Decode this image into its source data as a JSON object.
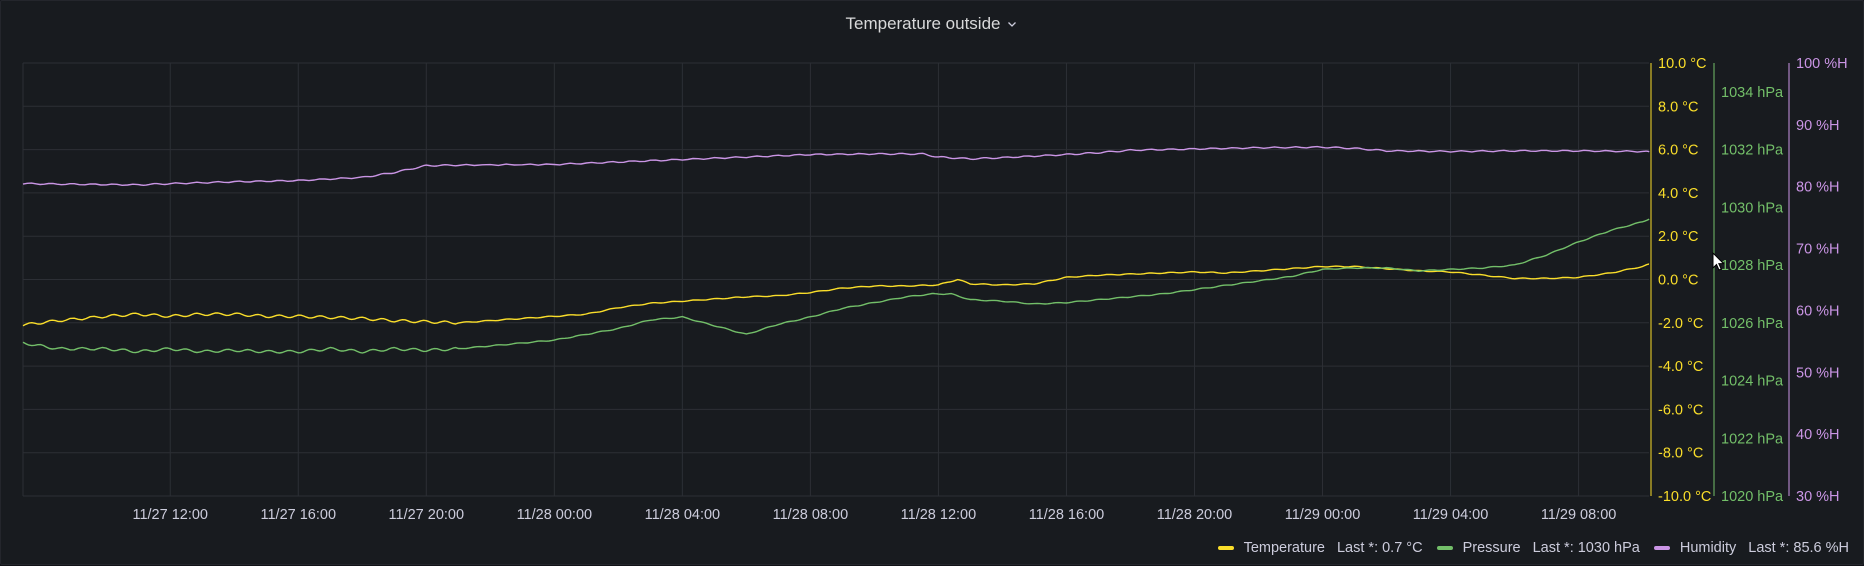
{
  "panel": {
    "title": "Temperature outside"
  },
  "colors": {
    "background": "#181b1f",
    "grid": "#2c2f35",
    "temperature": "#fade2a",
    "pressure": "#73bf69",
    "humidity": "#ca95e5",
    "tick_text": "#ccccdc"
  },
  "legend": [
    {
      "name": "Temperature",
      "last": "Last *: 0.7 °C",
      "color": "#fade2a"
    },
    {
      "name": "Pressure",
      "last": "Last *: 1030 hPa",
      "color": "#73bf69"
    },
    {
      "name": "Humidity",
      "last": "Last *: 85.6 %H",
      "color": "#ca95e5"
    }
  ],
  "chart_data": {
    "type": "line",
    "grid": true,
    "legend_position": "bottom-right",
    "x_range_hours": [
      -4.6,
      46.2
    ],
    "x_ticks": [
      {
        "h": 0,
        "label": "11/27 12:00"
      },
      {
        "h": 4,
        "label": "11/27 16:00"
      },
      {
        "h": 8,
        "label": "11/27 20:00"
      },
      {
        "h": 12,
        "label": "11/28 00:00"
      },
      {
        "h": 16,
        "label": "11/28 04:00"
      },
      {
        "h": 20,
        "label": "11/28 08:00"
      },
      {
        "h": 24,
        "label": "11/28 12:00"
      },
      {
        "h": 28,
        "label": "11/28 16:00"
      },
      {
        "h": 32,
        "label": "11/28 20:00"
      },
      {
        "h": 36,
        "label": "11/29 00:00"
      },
      {
        "h": 40,
        "label": "11/29 04:00"
      },
      {
        "h": 44,
        "label": "11/29 08:00"
      }
    ],
    "axes": [
      {
        "id": "temp",
        "unit": "°C",
        "color": "#fade2a",
        "range": [
          -10,
          10
        ],
        "ticks": [
          {
            "v": 10,
            "label": "10.0 °C"
          },
          {
            "v": 8,
            "label": "8.0 °C"
          },
          {
            "v": 6,
            "label": "6.0 °C"
          },
          {
            "v": 4,
            "label": "4.0 °C"
          },
          {
            "v": 2,
            "label": "2.0 °C"
          },
          {
            "v": 0,
            "label": "0.0 °C"
          },
          {
            "v": -2,
            "label": "-2.0 °C"
          },
          {
            "v": -4,
            "label": "-4.0 °C"
          },
          {
            "v": -6,
            "label": "-6.0 °C"
          },
          {
            "v": -8,
            "label": "-8.0 °C"
          },
          {
            "v": -10,
            "label": "-10.0 °C"
          }
        ]
      },
      {
        "id": "pressure",
        "unit": "hPa",
        "color": "#73bf69",
        "range": [
          1020,
          1035
        ],
        "ticks": [
          {
            "v": 1034,
            "label": "1034 hPa"
          },
          {
            "v": 1032,
            "label": "1032 hPa"
          },
          {
            "v": 1030,
            "label": "1030 hPa"
          },
          {
            "v": 1028,
            "label": "1028 hPa"
          },
          {
            "v": 1026,
            "label": "1026 hPa"
          },
          {
            "v": 1024,
            "label": "1024 hPa"
          },
          {
            "v": 1022,
            "label": "1022 hPa"
          },
          {
            "v": 1020,
            "label": "1020 hPa"
          }
        ]
      },
      {
        "id": "humidity",
        "unit": "%H",
        "color": "#ca95e5",
        "range": [
          30,
          100
        ],
        "ticks": [
          {
            "v": 100,
            "label": "100 %H"
          },
          {
            "v": 90,
            "label": "90 %H"
          },
          {
            "v": 80,
            "label": "80 %H"
          },
          {
            "v": 70,
            "label": "70 %H"
          },
          {
            "v": 60,
            "label": "60 %H"
          },
          {
            "v": 50,
            "label": "50 %H"
          },
          {
            "v": 40,
            "label": "40 %H"
          },
          {
            "v": 30,
            "label": "30 %H"
          }
        ]
      }
    ],
    "series": [
      {
        "name": "Temperature",
        "axis": "temp",
        "color": "#fade2a",
        "points": [
          [
            -4.6,
            -2.1
          ],
          [
            -3.5,
            -1.9
          ],
          [
            -2,
            -1.7
          ],
          [
            -1,
            -1.6
          ],
          [
            0,
            -1.7
          ],
          [
            1,
            -1.6
          ],
          [
            2,
            -1.6
          ],
          [
            3,
            -1.7
          ],
          [
            4,
            -1.7
          ],
          [
            5,
            -1.75
          ],
          [
            6,
            -1.8
          ],
          [
            7,
            -1.9
          ],
          [
            8,
            -1.95
          ],
          [
            9,
            -2.0
          ],
          [
            10,
            -1.9
          ],
          [
            11,
            -1.8
          ],
          [
            12,
            -1.7
          ],
          [
            13,
            -1.6
          ],
          [
            14,
            -1.3
          ],
          [
            15,
            -1.1
          ],
          [
            16,
            -1.0
          ],
          [
            17,
            -0.9
          ],
          [
            18,
            -0.8
          ],
          [
            19,
            -0.75
          ],
          [
            20,
            -0.6
          ],
          [
            21,
            -0.4
          ],
          [
            22,
            -0.3
          ],
          [
            23,
            -0.3
          ],
          [
            24,
            -0.25
          ],
          [
            24.6,
            0.0
          ],
          [
            25,
            -0.2
          ],
          [
            26,
            -0.25
          ],
          [
            27,
            -0.2
          ],
          [
            28,
            0.1
          ],
          [
            29,
            0.2
          ],
          [
            30,
            0.25
          ],
          [
            31,
            0.3
          ],
          [
            32,
            0.35
          ],
          [
            33,
            0.3
          ],
          [
            34,
            0.4
          ],
          [
            35,
            0.5
          ],
          [
            36,
            0.6
          ],
          [
            37,
            0.6
          ],
          [
            38,
            0.5
          ],
          [
            39,
            0.4
          ],
          [
            40,
            0.35
          ],
          [
            41,
            0.2
          ],
          [
            42,
            0.05
          ],
          [
            43,
            0.05
          ],
          [
            44,
            0.1
          ],
          [
            45,
            0.3
          ],
          [
            46,
            0.6
          ],
          [
            46.2,
            0.7
          ]
        ]
      },
      {
        "name": "Pressure",
        "axis": "pressure",
        "color": "#73bf69",
        "points": [
          [
            -4.6,
            1025.3
          ],
          [
            -3.5,
            1025.1
          ],
          [
            -2,
            1025.1
          ],
          [
            -1,
            1025.0
          ],
          [
            0,
            1025.1
          ],
          [
            1,
            1025.0
          ],
          [
            2,
            1025.05
          ],
          [
            3,
            1025.0
          ],
          [
            4,
            1025.0
          ],
          [
            5,
            1025.1
          ],
          [
            6,
            1025.0
          ],
          [
            7,
            1025.1
          ],
          [
            8,
            1025.05
          ],
          [
            9,
            1025.1
          ],
          [
            10,
            1025.2
          ],
          [
            11,
            1025.3
          ],
          [
            12,
            1025.4
          ],
          [
            13,
            1025.6
          ],
          [
            14,
            1025.8
          ],
          [
            15,
            1026.1
          ],
          [
            16,
            1026.2
          ],
          [
            17,
            1025.9
          ],
          [
            18,
            1025.6
          ],
          [
            19,
            1025.95
          ],
          [
            20,
            1026.2
          ],
          [
            21,
            1026.5
          ],
          [
            22,
            1026.7
          ],
          [
            23,
            1026.9
          ],
          [
            23.8,
            1027.0
          ],
          [
            24.4,
            1027.0
          ],
          [
            25,
            1026.8
          ],
          [
            26,
            1026.75
          ],
          [
            27,
            1026.65
          ],
          [
            28,
            1026.7
          ],
          [
            29,
            1026.8
          ],
          [
            30,
            1026.9
          ],
          [
            31,
            1027.0
          ],
          [
            32,
            1027.15
          ],
          [
            33,
            1027.3
          ],
          [
            34,
            1027.45
          ],
          [
            35,
            1027.6
          ],
          [
            36,
            1027.85
          ],
          [
            37,
            1027.9
          ],
          [
            38,
            1027.9
          ],
          [
            39,
            1027.8
          ],
          [
            40,
            1027.85
          ],
          [
            41,
            1027.9
          ],
          [
            42,
            1028.0
          ],
          [
            43,
            1028.35
          ],
          [
            44,
            1028.8
          ],
          [
            45,
            1029.2
          ],
          [
            46,
            1029.5
          ],
          [
            46.2,
            1029.6
          ]
        ]
      },
      {
        "name": "Humidity",
        "axis": "humidity",
        "color": "#ca95e5",
        "points": [
          [
            -4.6,
            80.5
          ],
          [
            -3,
            80.4
          ],
          [
            -1,
            80.3
          ],
          [
            0,
            80.5
          ],
          [
            2,
            80.8
          ],
          [
            4,
            81.0
          ],
          [
            6,
            81.5
          ],
          [
            7,
            82.3
          ],
          [
            8,
            83.4
          ],
          [
            9,
            83.5
          ],
          [
            12,
            83.6
          ],
          [
            14,
            84.0
          ],
          [
            16,
            84.4
          ],
          [
            18,
            84.8
          ],
          [
            20,
            85.2
          ],
          [
            22,
            85.3
          ],
          [
            23.5,
            85.3
          ],
          [
            24,
            84.8
          ],
          [
            25,
            84.5
          ],
          [
            26,
            84.7
          ],
          [
            28,
            85.2
          ],
          [
            29,
            85.5
          ],
          [
            30,
            85.9
          ],
          [
            32,
            86.1
          ],
          [
            34,
            86.3
          ],
          [
            36,
            86.4
          ],
          [
            37,
            86.2
          ],
          [
            38,
            85.8
          ],
          [
            40,
            85.7
          ],
          [
            42,
            85.8
          ],
          [
            44,
            85.8
          ],
          [
            46,
            85.7
          ],
          [
            46.2,
            85.6
          ]
        ]
      }
    ]
  }
}
